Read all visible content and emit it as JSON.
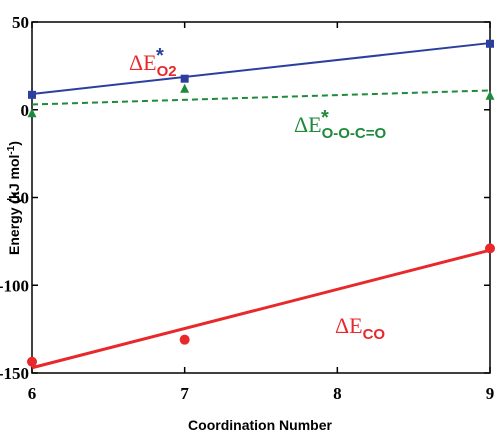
{
  "chart_data": {
    "type": "scatter",
    "x_label": "Coordination Number",
    "y_label": {
      "text": "Energy (kJ mol",
      "sup": "-1",
      "close": ")"
    },
    "xlim": [
      6,
      9
    ],
    "xticks": [
      6,
      7,
      8,
      9
    ],
    "ylim": [
      -150,
      50
    ],
    "yticks": [
      50,
      0,
      -50,
      -100,
      -150
    ],
    "series": [
      {
        "marker": "square",
        "color": "#2b3f9e",
        "x": [
          6,
          7,
          9
        ],
        "values": [
          8.5,
          17.7,
          37.6
        ]
      },
      {
        "marker": "triangle",
        "color": "#1e8a3a",
        "x": [
          6,
          7,
          9
        ],
        "values": [
          -2,
          12,
          8
        ]
      },
      {
        "marker": "circle",
        "color": "#e8282b",
        "x": [
          6,
          7,
          9
        ],
        "values": [
          -143.6,
          -131,
          -79
        ]
      }
    ],
    "fits": [
      {
        "color": "#2b3f9e",
        "dash": false,
        "x": [
          6,
          9
        ],
        "values": [
          9,
          38
        ]
      },
      {
        "color": "#1e8a3a",
        "dash": true,
        "x": [
          6,
          9
        ],
        "values": [
          3,
          11
        ]
      },
      {
        "color": "#e8282b",
        "dash": false,
        "x": [
          6,
          9
        ],
        "values": [
          -147,
          -80
        ]
      }
    ],
    "annotations": [
      {
        "main": "ΔE",
        "sub": "O2",
        "sup": "*",
        "color": "#e8282b"
      },
      {
        "main": "ΔE",
        "sub": "O-O-C=O",
        "sup": "*",
        "color": "#1e8a3a"
      },
      {
        "main": "ΔE",
        "sub": "CO",
        "sup": null,
        "color": "#e8282b"
      }
    ]
  }
}
